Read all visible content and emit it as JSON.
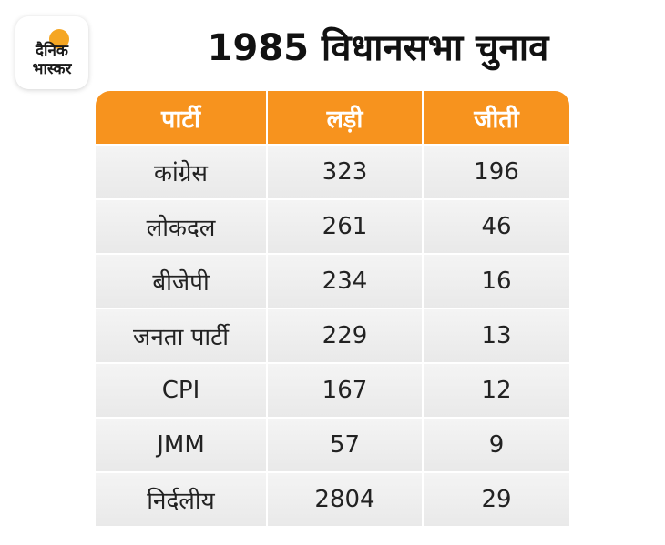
{
  "logo": {
    "line1": "दैनिक",
    "line2": "भास्कर"
  },
  "chart_data": {
    "type": "table",
    "title": "1985 विधानसभा चुनाव",
    "columns": [
      "पार्टी",
      "लड़ी",
      "जीती"
    ],
    "rows": [
      [
        "कांग्रेस",
        "323",
        "196"
      ],
      [
        "लोकदल",
        "261",
        "46"
      ],
      [
        "बीजेपी",
        "234",
        "16"
      ],
      [
        "जनता पार्टी",
        "229",
        "13"
      ],
      [
        "CPI",
        "167",
        "12"
      ],
      [
        "JMM",
        "57",
        "9"
      ],
      [
        "निर्दलीय",
        "2804",
        "29"
      ]
    ]
  },
  "colors": {
    "header": "#f7931e",
    "row": "#eeeeee",
    "logo_sun": "#f5a623"
  }
}
